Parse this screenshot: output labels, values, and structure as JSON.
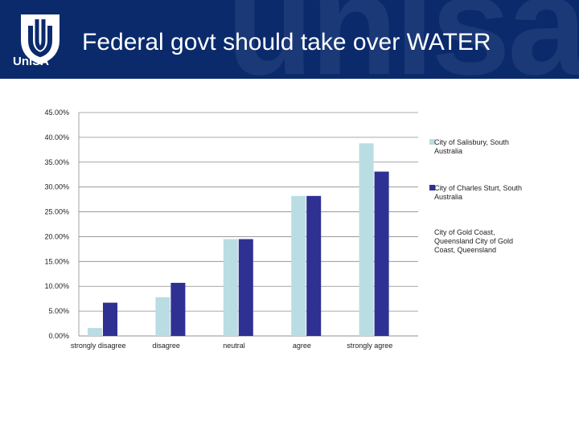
{
  "header": {
    "title": "Federal govt should take over WATER",
    "logo_text": "UniSA",
    "watermark_text": "unisa",
    "background_color": "#0a2a6c"
  },
  "chart_data": {
    "type": "bar",
    "categories": [
      "strongly disagree",
      "disagree",
      "neutral",
      "agree",
      "strongly agree"
    ],
    "y_ticks": [
      "0.00%",
      "5.00%",
      "10.00%",
      "15.00%",
      "20.00%",
      "25.00%",
      "30.00%",
      "35.00%",
      "40.00%",
      "45.00%"
    ],
    "ylim": [
      0,
      45
    ],
    "grid": true,
    "legend_position": "right",
    "series": [
      {
        "name": "City of Salisbury, South Australia",
        "color": "#b9dde3",
        "values": [
          1.6,
          7.8,
          19.5,
          28.2,
          38.8
        ]
      },
      {
        "name": "City of Charles Sturt, South Australia",
        "color": "#2e3192",
        "values": [
          6.7,
          10.7,
          19.5,
          28.2,
          33.1
        ]
      },
      {
        "name": "City of Gold Coast, Queensland City of Gold Coast, Queensland",
        "color": "#ffffff",
        "values": [
          0,
          0,
          0,
          0,
          0
        ]
      }
    ]
  }
}
